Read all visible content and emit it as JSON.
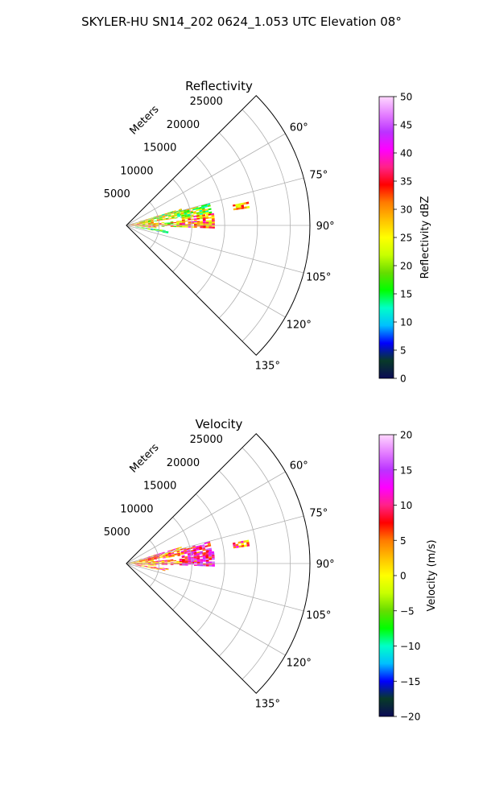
{
  "figure_title": "SKYLER-HU  SN14_202  0624_1.053 UTC Elevation 08°",
  "chart_data": [
    {
      "type": "heatmap",
      "subtype": "polar-sector-ppi",
      "title": "Reflectivity",
      "radial_axis_label": "Meters",
      "radial_ticks": [
        5000,
        10000,
        15000,
        20000,
        25000
      ],
      "radial_tick_labels": [
        "5000",
        "10000",
        "15000",
        "20000",
        "25000"
      ],
      "radial_range": [
        0,
        28000
      ],
      "azimuth_range_deg": [
        45,
        135
      ],
      "azimuth_ticks_deg": [
        60,
        75,
        90,
        105,
        120,
        135
      ],
      "azimuth_tick_labels": [
        "60°",
        "75°",
        "90°",
        "105°",
        "120°",
        "135°"
      ],
      "colorbar": {
        "label": "Reflectivity dBZ",
        "range": [
          0,
          50
        ],
        "ticks": [
          0,
          5,
          10,
          15,
          20,
          25,
          30,
          35,
          40,
          45,
          50
        ],
        "tick_labels": [
          "0",
          "5",
          "10",
          "15",
          "20",
          "25",
          "30",
          "35",
          "40",
          "45",
          "50"
        ],
        "stops": [
          "#0a0a55",
          "#083a28",
          "#0000ff",
          "#00bfff",
          "#00ffc8",
          "#00ff00",
          "#66dd00",
          "#c8ff00",
          "#ffff00",
          "#ffc000",
          "#ff7a00",
          "#ff0000",
          "#ff2288",
          "#ff00ff",
          "#bb33ff",
          "#e580ff",
          "#ffd8ff"
        ]
      },
      "echoes_summary": "Echoes from ~0 to ~14000 m, azimuth ~70°–100°, values mostly 10–40 dBZ"
    },
    {
      "type": "heatmap",
      "subtype": "polar-sector-ppi",
      "title": "Velocity",
      "radial_axis_label": "Meters",
      "radial_ticks": [
        5000,
        10000,
        15000,
        20000,
        25000
      ],
      "radial_tick_labels": [
        "5000",
        "10000",
        "15000",
        "20000",
        "25000"
      ],
      "radial_range": [
        0,
        28000
      ],
      "azimuth_range_deg": [
        45,
        135
      ],
      "azimuth_ticks_deg": [
        60,
        75,
        90,
        105,
        120,
        135
      ],
      "azimuth_tick_labels": [
        "60°",
        "75°",
        "90°",
        "105°",
        "120°",
        "135°"
      ],
      "colorbar": {
        "label": "Velocity (m/s)",
        "range": [
          -20,
          20
        ],
        "ticks": [
          -20,
          -15,
          -10,
          -5,
          0,
          5,
          10,
          15,
          20
        ],
        "tick_labels": [
          "−20",
          "−15",
          "−10",
          "−5",
          "0",
          "5",
          "10",
          "15",
          "20"
        ],
        "stops": [
          "#0a0a55",
          "#083a28",
          "#0000ff",
          "#00bfff",
          "#00ffc8",
          "#00ff00",
          "#66dd00",
          "#c8ff00",
          "#ffff00",
          "#ffc000",
          "#ff7a00",
          "#ff0000",
          "#ff2288",
          "#ff00ff",
          "#bb33ff",
          "#e580ff",
          "#ffd8ff"
        ]
      },
      "echoes_summary": "Same echo footprint; values mostly −5 to 15 m/s"
    }
  ]
}
